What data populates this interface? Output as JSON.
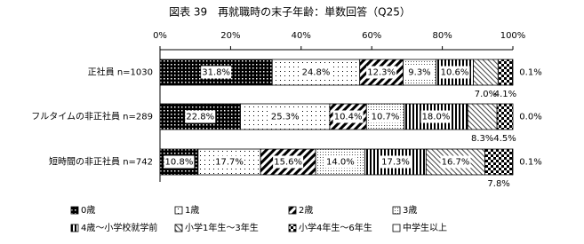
{
  "chart_data": {
    "type": "stacked-bar-horizontal",
    "title": "図表 39　再就職時の末子年齢：単数回答（Q25）",
    "categories": [
      "正社員 n=1030",
      "フルタイムの非正社員 n=289",
      "短時間の非正社員 n=742"
    ],
    "xlim": [
      0,
      100
    ],
    "xticks": [
      {
        "value": 0,
        "label": "0%"
      },
      {
        "value": 20,
        "label": "20%"
      },
      {
        "value": 40,
        "label": "40%"
      },
      {
        "value": 60,
        "label": "60%"
      },
      {
        "value": 80,
        "label": "80%"
      },
      {
        "value": 100,
        "label": "100%"
      }
    ],
    "series": [
      {
        "name": "0歳",
        "values": [
          31.8,
          22.8,
          10.8
        ],
        "value_labels": [
          "31.8%",
          "22.8%",
          "10.8%"
        ]
      },
      {
        "name": "1歳",
        "values": [
          24.8,
          25.3,
          17.7
        ],
        "value_labels": [
          "24.8%",
          "25.3%",
          "17.7%"
        ]
      },
      {
        "name": "2歳",
        "values": [
          12.3,
          10.4,
          15.6
        ],
        "value_labels": [
          "12.3%",
          "10.4%",
          "15.6%"
        ]
      },
      {
        "name": "3歳",
        "values": [
          9.3,
          10.7,
          14.0
        ],
        "value_labels": [
          "9.3%",
          "10.7%",
          "14.0%"
        ]
      },
      {
        "name": "4歳～小学校就学前",
        "values": [
          10.6,
          18.0,
          17.3
        ],
        "value_labels": [
          "10.6%",
          "18.0%",
          "17.3%"
        ]
      },
      {
        "name": "小学1年生～3年生",
        "values": [
          7.0,
          8.3,
          16.7
        ],
        "value_labels": [
          "7.0%",
          "8.3%",
          "16.7%"
        ]
      },
      {
        "name": "小学4年生～6年生",
        "values": [
          4.1,
          4.5,
          7.8
        ],
        "value_labels": [
          "4.1%",
          "4.5%",
          "7.8%"
        ]
      },
      {
        "name": "中学生以上",
        "values": [
          0.1,
          0.0,
          0.1
        ],
        "value_labels": [
          "0.1%",
          "0.0%",
          "0.1%"
        ]
      }
    ]
  }
}
